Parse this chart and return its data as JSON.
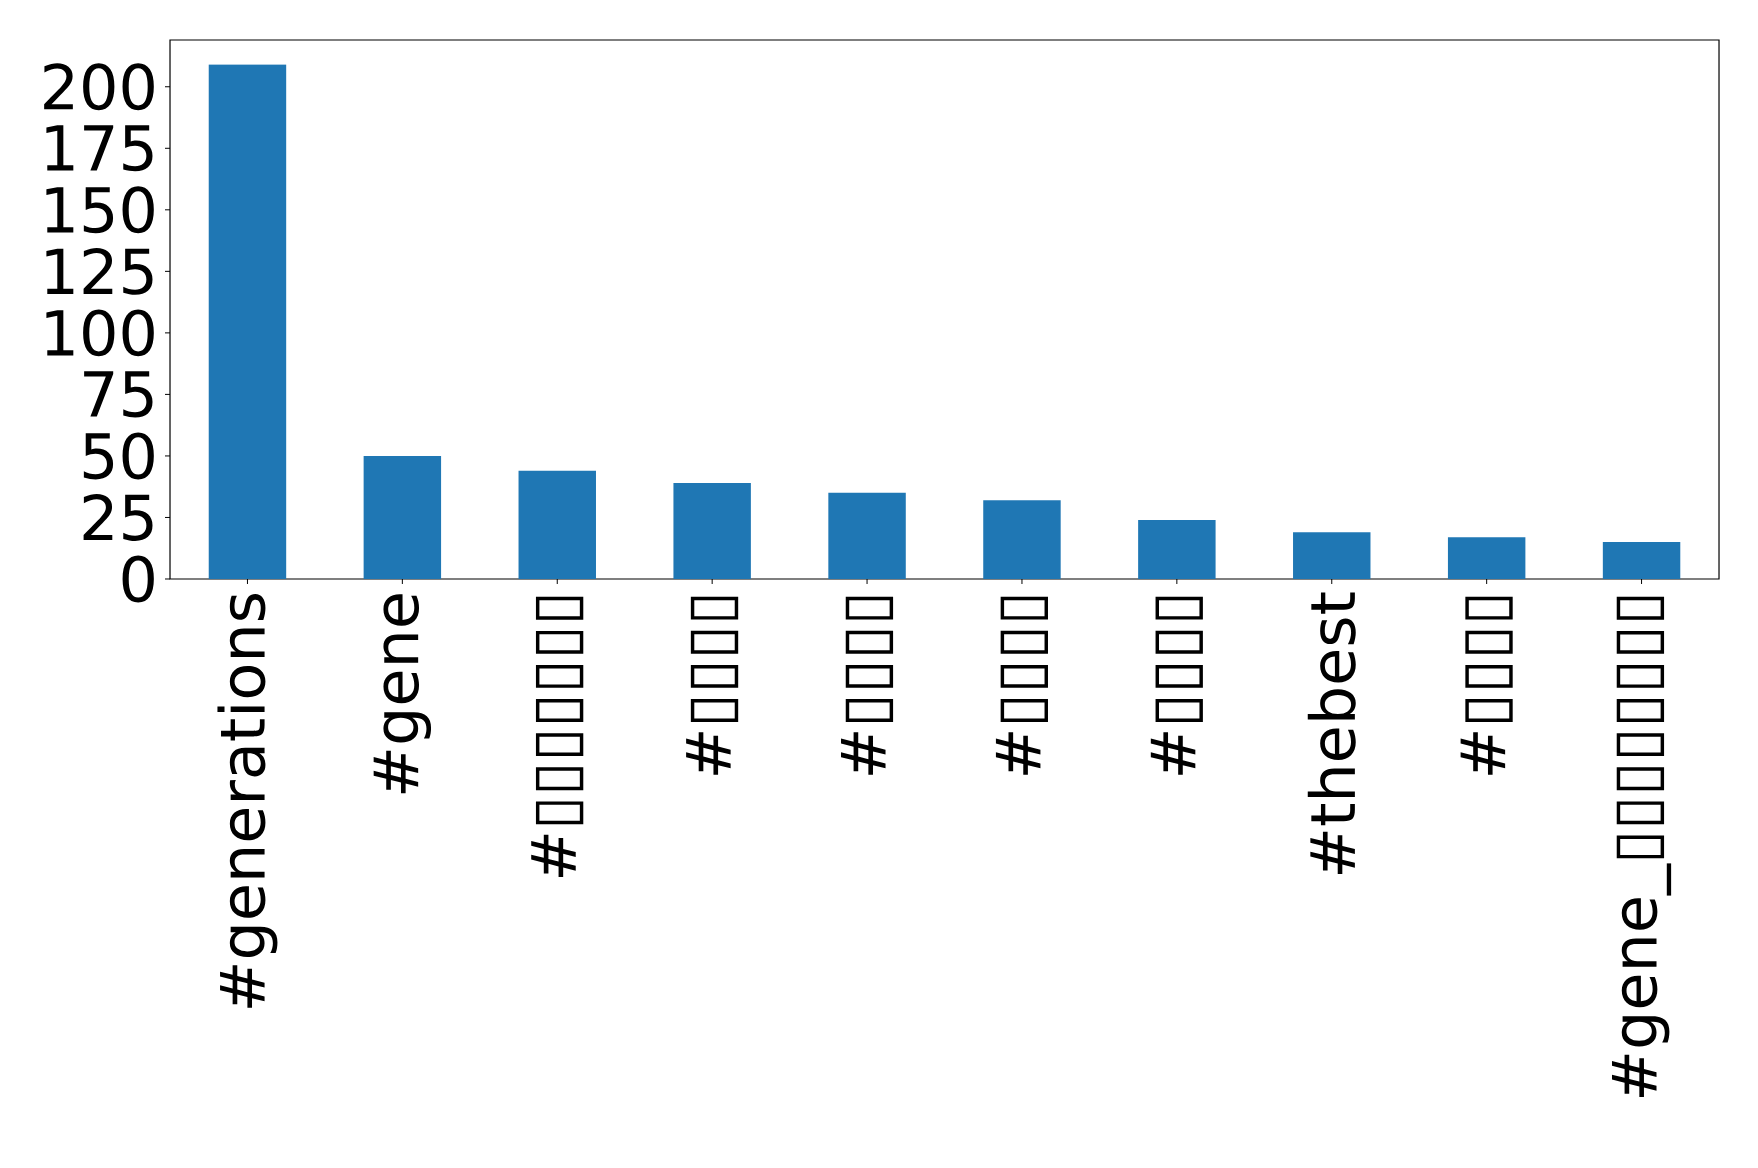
{
  "chart_data": {
    "type": "bar",
    "categories": [
      "#generations",
      "#gene",
      "#▯▯▯▯▯▯▯",
      "#▯▯▯▯",
      "#▯▯▯▯",
      "#▯▯▯▯",
      "#▯▯▯▯",
      "#thebest",
      "#▯▯▯▯",
      "#gene_▯▯▯▯▯▯▯▯"
    ],
    "values": [
      209,
      50,
      44,
      39,
      35,
      32,
      24,
      19,
      17,
      15
    ],
    "color": "#1f77b4",
    "ylim": [
      0,
      219
    ],
    "yticks": [
      0,
      25,
      50,
      75,
      100,
      125,
      150,
      175,
      200
    ]
  }
}
